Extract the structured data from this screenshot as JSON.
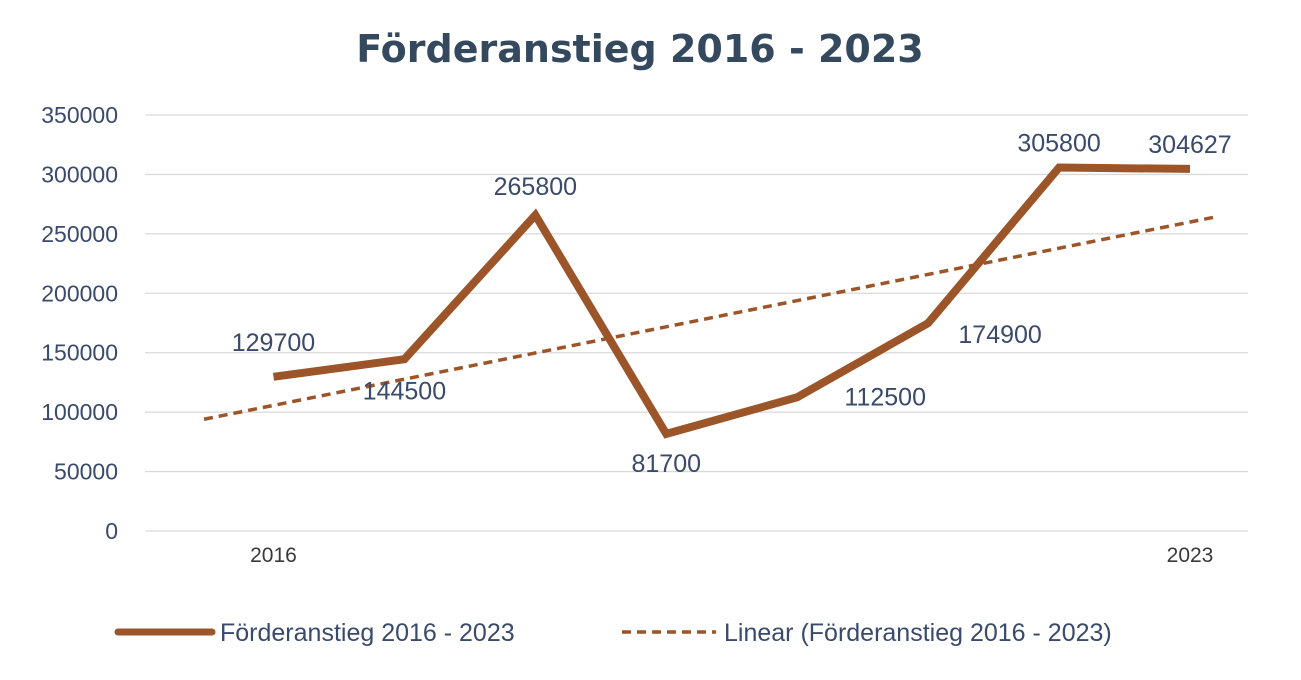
{
  "chart_data": {
    "type": "line",
    "title": "Förderanstieg 2016 - 2023",
    "xlabel": "",
    "ylabel": "",
    "ylim": [
      0,
      350000
    ],
    "ytick_step": 50000,
    "grid": true,
    "x_tick_labels": [
      "2016",
      "",
      "",
      "",
      "",
      "",
      "",
      "2023"
    ],
    "series": [
      {
        "name": "Förderanstieg 2016 - 2023",
        "values": [
          129700,
          144500,
          265800,
          81700,
          112500,
          174900,
          305800,
          304627
        ],
        "labels": [
          "129700",
          "144500",
          "265800",
          "81700",
          "112500",
          "174900",
          "305800",
          "304627"
        ],
        "color": "#9c5528",
        "style": "solid"
      },
      {
        "name": "Linear (Förderanstieg 2016 - 2023)",
        "trend_start": 94000,
        "trend_end": 264000,
        "color": "#9c5528",
        "style": "dashed"
      }
    ],
    "legend_position": "bottom"
  }
}
